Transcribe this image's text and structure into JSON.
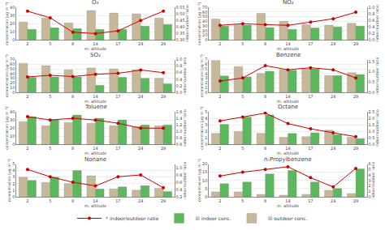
{
  "chart_data": [
    {
      "type": "bar",
      "title": "O₃",
      "xlabel": "m. altitude",
      "ylabel": "concentration (µg m⁻³)",
      "y2label": "indoor/outdoor ratio",
      "categories": [
        "2",
        "5",
        "8",
        "14",
        "17",
        "24",
        "29"
      ],
      "series": [
        {
          "name": "☒ outdoor conc.",
          "type": "bar",
          "color": "#c8b89a",
          "values": [
            22,
            27,
            21,
            36,
            33,
            32,
            27
          ]
        },
        {
          "name": "☒ indoor conc.",
          "type": "bar",
          "color": "#5cb85c",
          "values": [
            13,
            15,
            14,
            13,
            13,
            17,
            19
          ]
        },
        {
          "name": "* indoor/outdoor ratio",
          "type": "line",
          "axis": "y2",
          "color": "#cc0000",
          "marker": "circle",
          "values": [
            0.52,
            0.47,
            0.36,
            0.35,
            0.37,
            0.45,
            0.52
          ]
        }
      ],
      "ylim": [
        0,
        40
      ],
      "yticks": [
        0,
        10,
        20,
        30,
        40
      ],
      "y2lim": [
        0.3,
        0.55
      ],
      "y2ticks": [
        {
          "value": 0.3,
          "label": "0.30"
        },
        0.35,
        {
          "value": 0.4,
          "label": "0.40"
        },
        0.45,
        {
          "value": 0.5,
          "label": "0.50"
        },
        0.55
      ],
      "grid": true,
      "legend": "bottom"
    },
    {
      "type": "bar",
      "title": "NO₂",
      "xlabel": "m. altitude",
      "ylabel": "concentration (µg m⁻³)",
      "y2label": "indoor/outdoor ratio",
      "categories": [
        "2",
        "5",
        "8",
        "14",
        "17",
        "24",
        "29"
      ],
      "series": [
        {
          "name": "☒ outdoor conc.",
          "type": "bar",
          "color": "#c8b89a",
          "values": [
            45,
            33,
            57,
            40,
            33,
            32,
            36
          ]
        },
        {
          "name": "☒ indoor conc.",
          "type": "bar",
          "color": "#5cb85c",
          "values": [
            30,
            32,
            27,
            23,
            26,
            28,
            30
          ]
        },
        {
          "name": "* indoor/outdoor ratio",
          "type": "line",
          "axis": "y2",
          "color": "#cc0000",
          "marker": "circle",
          "values": [
            0.45,
            0.5,
            0.47,
            0.45,
            0.55,
            0.65,
            0.85
          ]
        }
      ],
      "ylim": [
        0,
        70
      ],
      "yticks": [
        0,
        10,
        20,
        30,
        40,
        50,
        60,
        70
      ],
      "y2lim": [
        0,
        1
      ],
      "y2ticks": [
        {
          "value": 0,
          "label": "0.0"
        },
        0.2,
        0.4,
        0.6,
        0.8,
        {
          "value": 1.0,
          "label": "1.0"
        }
      ],
      "grid": true,
      "legend": "bottom"
    },
    {
      "type": "bar",
      "title": "SO₂",
      "xlabel": "m. altitude",
      "ylabel": "concentration (µg m⁻³)",
      "y2label": "indoor/outdoor ratio",
      "categories": [
        "2",
        "5",
        "8",
        "14",
        "17",
        "24",
        "29"
      ],
      "series": [
        {
          "name": "☒ outdoor conc.",
          "type": "bar",
          "color": "#c8b89a",
          "values": [
            62,
            57,
            48,
            52,
            50,
            48,
            30
          ]
        },
        {
          "name": "☒ indoor conc.",
          "type": "bar",
          "color": "#5cb85c",
          "values": [
            32,
            33,
            33,
            15,
            32,
            30,
            18
          ]
        },
        {
          "name": "* indoor/outdoor ratio",
          "type": "line",
          "axis": "y2",
          "color": "#cc0000",
          "marker": "circle",
          "values": [
            0.47,
            0.52,
            0.48,
            0.55,
            0.58,
            0.68,
            0.6
          ]
        }
      ],
      "ylim": [
        0,
        70
      ],
      "yticks": [
        0,
        10,
        20,
        30,
        40,
        50,
        60,
        70
      ],
      "y2lim": [
        0,
        1
      ],
      "y2ticks": [
        {
          "value": 0,
          "label": "0.0"
        },
        0.2,
        0.4,
        0.6,
        0.8,
        {
          "value": 1.0,
          "label": "1.0"
        }
      ],
      "grid": true,
      "legend": "bottom"
    },
    {
      "type": "bar",
      "title": "Benzene",
      "xlabel": "m. altitude",
      "ylabel": "concentration (µg m⁻³)",
      "y2label": "indoor/outdoor ratio",
      "categories": [
        "2",
        "5",
        "8",
        "14",
        "17",
        "24",
        "29"
      ],
      "series": [
        {
          "name": "☒ outdoor conc.",
          "type": "bar",
          "color": "#c8b89a",
          "values": [
            6.8,
            5.5,
            4.0,
            4.8,
            5.0,
            3.6,
            4.2
          ]
        },
        {
          "name": "☒ indoor conc.",
          "type": "bar",
          "color": "#5cb85c",
          "values": [
            3.5,
            3.3,
            4.5,
            4.7,
            5.0,
            3.6,
            3.8
          ]
        },
        {
          "name": "* indoor/outdoor ratio",
          "type": "line",
          "axis": "y2",
          "color": "#cc0000",
          "marker": "circle",
          "values": [
            0.55,
            0.7,
            1.3,
            1.1,
            1.2,
            1.1,
            0.7
          ]
        }
      ],
      "ylim": [
        0,
        7
      ],
      "yticks": [
        0,
        1,
        2,
        3,
        4,
        5,
        6,
        7
      ],
      "y2lim": [
        0,
        1.6
      ],
      "y2ticks": [
        {
          "value": 0,
          "label": "0.0"
        },
        0.5,
        {
          "value": 1.0,
          "label": "1.0"
        },
        1.5
      ],
      "grid": true,
      "legend": "bottom"
    },
    {
      "type": "bar",
      "title": "Toluene",
      "xlabel": "m. altitude",
      "ylabel": "concentration (µg m⁻³)",
      "y2label": "indoor/outdoor ratio",
      "categories": [
        "2",
        "5",
        "8",
        "14",
        "17",
        "24",
        "29"
      ],
      "series": [
        {
          "name": "☒ outdoor conc.",
          "type": "bar",
          "color": "#c8b89a",
          "values": [
            28,
            23,
            27,
            26,
            23,
            22,
            23
          ]
        },
        {
          "name": "☒ indoor conc.",
          "type": "bar",
          "color": "#5cb85c",
          "values": [
            34,
            30,
            36,
            32,
            30,
            24,
            24
          ]
        },
        {
          "name": "* indoor/outdoor ratio",
          "type": "line",
          "axis": "y2",
          "color": "#cc0000",
          "marker": "circle",
          "values": [
            1.45,
            1.35,
            1.4,
            1.35,
            1.25,
            1.1,
            1.1
          ]
        }
      ],
      "ylim": [
        0,
        40
      ],
      "yticks": [
        0,
        10,
        20,
        30,
        40
      ],
      "y2lim": [
        0.6,
        1.6
      ],
      "y2ticks": [
        0.6,
        0.8,
        {
          "value": 1.0,
          "label": "1.0"
        },
        1.2,
        1.4,
        1.6
      ],
      "grid": true,
      "legend": "bottom"
    },
    {
      "type": "bar",
      "title": "Octane",
      "xlabel": "m. altitude",
      "ylabel": "concentration (µg m⁻³)",
      "y2label": "indoor/outdoor ratio",
      "categories": [
        "2",
        "5",
        "8",
        "14",
        "17",
        "24",
        "29"
      ],
      "series": [
        {
          "name": "☒ outdoor conc.",
          "type": "bar",
          "color": "#c8b89a",
          "values": [
            1.7,
            2.0,
            1.7,
            1.1,
            1.2,
            2.2,
            1.1
          ]
        },
        {
          "name": "☒ indoor conc.",
          "type": "bar",
          "color": "#5cb85c",
          "values": [
            3.1,
            4.2,
            4.5,
            1.7,
            1.8,
            1.5,
            0.9
          ]
        },
        {
          "name": "* indoor/outdoor ratio",
          "type": "line",
          "axis": "y2",
          "color": "#cc0000",
          "marker": "circle",
          "values": [
            1.8,
            2.1,
            2.4,
            1.6,
            1.2,
            0.9,
            0.6
          ]
        }
      ],
      "ylim": [
        0,
        5
      ],
      "yticks": [
        0,
        1,
        2,
        3,
        4,
        5
      ],
      "y2lim": [
        0,
        2.5
      ],
      "y2ticks": [
        {
          "value": 0,
          "label": "0.0"
        },
        0.5,
        {
          "value": 1.0,
          "label": "1.0"
        },
        1.5,
        {
          "value": 2.0,
          "label": "2.0"
        },
        2.5
      ],
      "grid": true,
      "legend": "bottom"
    },
    {
      "type": "bar",
      "title": "Nonane",
      "xlabel": "m. altitude",
      "ylabel": "concentration (µg m⁻³)",
      "y2label": "indoor/outdoor ratio",
      "categories": [
        "2",
        "5",
        "8",
        "14",
        "17",
        "24",
        "29"
      ],
      "series": [
        {
          "name": "☒ outdoor conc.",
          "type": "bar",
          "color": "#c8b89a",
          "values": [
            3.0,
            2.2,
            2.0,
            3.2,
            1.2,
            1.0,
            1.3
          ]
        },
        {
          "name": "☒ indoor conc.",
          "type": "bar",
          "color": "#5cb85c",
          "values": [
            2.5,
            3.0,
            4.0,
            1.2,
            1.5,
            1.7,
            0.8
          ]
        },
        {
          "name": "* indoor/outdoor ratio",
          "type": "line",
          "axis": "y2",
          "color": "#cc0000",
          "marker": "circle",
          "values": [
            0.95,
            0.75,
            0.6,
            0.5,
            0.75,
            0.8,
            0.45
          ]
        }
      ],
      "ylim": [
        0,
        5
      ],
      "yticks": [
        0,
        1,
        2,
        3,
        4,
        5
      ],
      "y2lim": [
        0.2,
        1.1
      ],
      "y2ticks": [
        0.2,
        0.4,
        0.6,
        0.8,
        {
          "value": 1.0,
          "label": "1.0"
        }
      ],
      "grid": true,
      "legend": "bottom"
    },
    {
      "type": "bar",
      "title": "n-Propylbenzene",
      "xlabel": "m. altitude",
      "ylabel": "concentration (µg m⁻³)",
      "y2label": "indoor/outdoor ratio",
      "categories": [
        "2",
        "5",
        "8",
        "14",
        "17",
        "24",
        "29"
      ],
      "series": [
        {
          "name": "☒ outdoor conc.",
          "type": "bar",
          "color": "#c8b89a",
          "values": [
            3,
            3,
            1.5,
            1,
            1.5,
            4,
            2
          ]
        },
        {
          "name": "☒ indoor conc.",
          "type": "bar",
          "color": "#5cb85c",
          "values": [
            8,
            9,
            14,
            16,
            9,
            5,
            17
          ]
        },
        {
          "name": "* indoor/outdoor ratio",
          "type": "line",
          "axis": "y2",
          "color": "#cc0000",
          "marker": "circle",
          "values": [
            3.8,
            4.5,
            5.0,
            5.5,
            3.5,
            1.8,
            5.2
          ]
        }
      ],
      "ylim": [
        0,
        20
      ],
      "yticks": [
        0,
        5,
        10,
        15,
        20
      ],
      "y2lim": [
        0,
        6
      ],
      "y2ticks": [
        0,
        1,
        2,
        3,
        4,
        5,
        6
      ],
      "grid": true,
      "legend": "bottom"
    }
  ]
}
